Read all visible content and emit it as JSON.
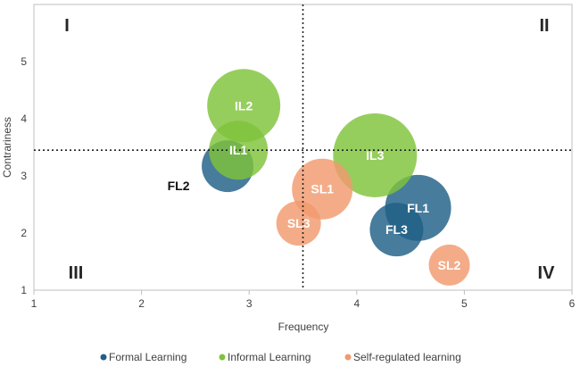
{
  "chart_data": {
    "type": "bubble",
    "xlabel": "Frequency",
    "ylabel": "Contrariness",
    "xlim": [
      1,
      6
    ],
    "ylim": [
      1,
      6
    ],
    "xticks": [
      "1",
      "2",
      "3",
      "4",
      "5",
      "6"
    ],
    "yticks": [
      "1",
      "2",
      "3",
      "4",
      "5"
    ],
    "grid": false,
    "reference_lines": {
      "x": 3.5,
      "y": 3.45
    },
    "quadrants": [
      {
        "label": "I",
        "position": "top-left"
      },
      {
        "label": "II",
        "position": "top-right"
      },
      {
        "label": "III",
        "position": "bottom-left"
      },
      {
        "label": "IV",
        "position": "bottom-right"
      }
    ],
    "legend_position": "bottom",
    "series": [
      {
        "name": "Formal Learning",
        "color": "#1f5f86",
        "points": [
          {
            "label": "FL1",
            "x": 4.57,
            "y": 2.44,
            "size": 37
          },
          {
            "label": "FL2",
            "x": 2.8,
            "y": 3.17,
            "size": 29,
            "label_outside": true
          },
          {
            "label": "FL3",
            "x": 4.37,
            "y": 2.06,
            "size": 30
          }
        ]
      },
      {
        "name": "Informal Learning",
        "color": "#7fc33a",
        "points": [
          {
            "label": "IL1",
            "x": 2.9,
            "y": 3.45,
            "size": 33
          },
          {
            "label": "IL2",
            "x": 2.95,
            "y": 4.23,
            "size": 41
          },
          {
            "label": "IL3",
            "x": 4.17,
            "y": 3.36,
            "size": 47
          }
        ]
      },
      {
        "name": "Self-regulated learning",
        "color": "#f29a6e",
        "points": [
          {
            "label": "SL1",
            "x": 3.68,
            "y": 2.77,
            "size": 34
          },
          {
            "label": "SL2",
            "x": 4.86,
            "y": 1.44,
            "size": 23
          },
          {
            "label": "SL3",
            "x": 3.46,
            "y": 2.17,
            "size": 25
          }
        ]
      }
    ]
  }
}
